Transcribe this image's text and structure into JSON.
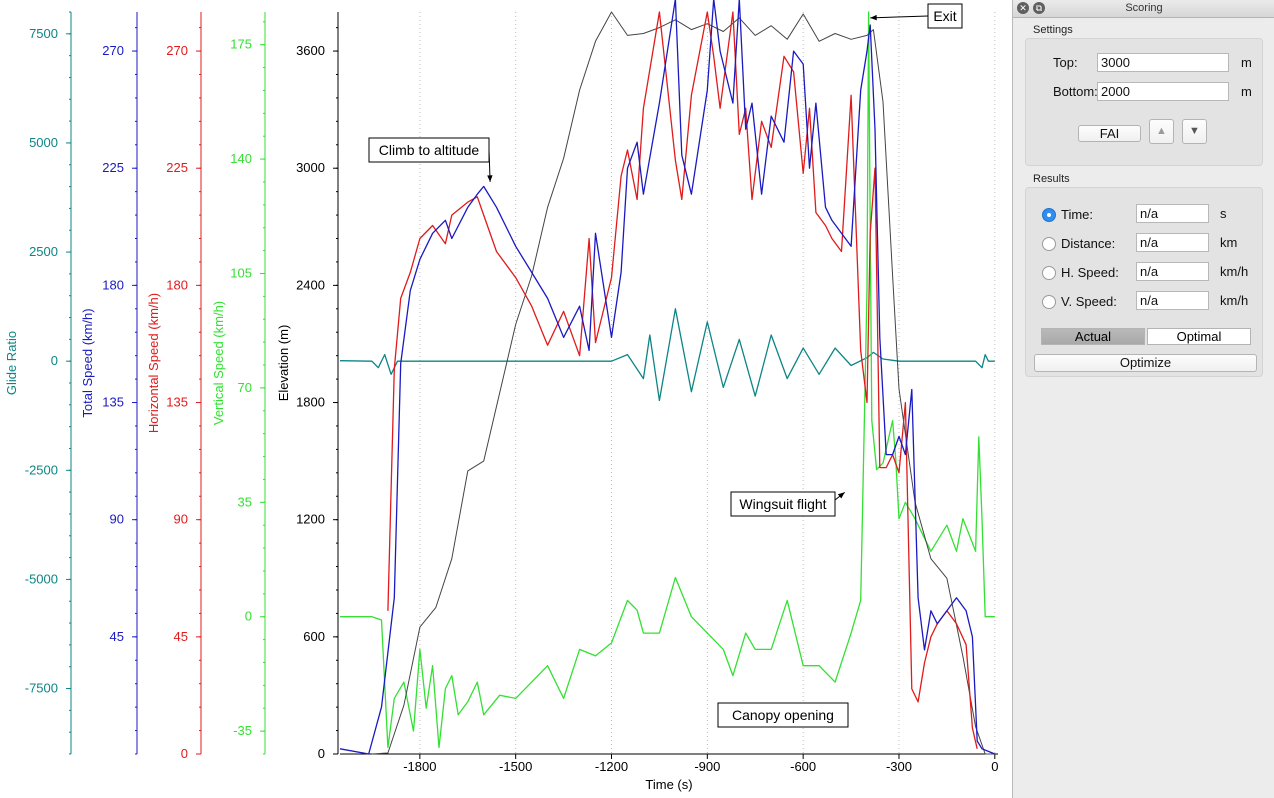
{
  "chart_data": {
    "type": "line",
    "xlabel": "Time (s)",
    "xlim": [
      -2050,
      10
    ],
    "xticks": [
      -1800,
      -1500,
      -1200,
      -900,
      -600,
      -300,
      0
    ],
    "axes": [
      {
        "key": "glide",
        "label": "Glide Ratio",
        "color": "#0d8585",
        "min": -9000,
        "max": 8000,
        "ticks": [
          -7500,
          -5000,
          -2500,
          0,
          2500,
          5000,
          7500
        ]
      },
      {
        "key": "total",
        "label": "Total Speed (km/h)",
        "color": "#1a1ac2",
        "min": 0,
        "max": 285,
        "ticks": [
          45,
          90,
          135,
          180,
          225,
          270
        ]
      },
      {
        "key": "horiz",
        "label": "Horizontal Speed (km/h)",
        "color": "#e01b1b",
        "min": 0,
        "max": 285,
        "ticks": [
          0,
          45,
          90,
          135,
          180,
          225,
          270
        ]
      },
      {
        "key": "vert",
        "label": "Vertical Speed (km/h)",
        "color": "#33e033",
        "min": -42,
        "max": 185,
        "ticks": [
          -35,
          0,
          35,
          70,
          105,
          140,
          175
        ]
      },
      {
        "key": "elev",
        "label": "Elevation (m)",
        "color": "#000000",
        "min": 0,
        "max": 3800,
        "ticks": [
          0,
          600,
          1200,
          1800,
          2400,
          3000,
          3600
        ]
      }
    ],
    "series": [
      {
        "name": "Elevation",
        "axis": "elev",
        "color": "#444444",
        "x": [
          -1950,
          -1900,
          -1850,
          -1800,
          -1750,
          -1700,
          -1650,
          -1600,
          -1550,
          -1500,
          -1450,
          -1400,
          -1350,
          -1300,
          -1250,
          -1200,
          -1150,
          -1100,
          -1050,
          -1000,
          -950,
          -900,
          -850,
          -800,
          -750,
          -700,
          -650,
          -600,
          -550,
          -500,
          -450,
          -400,
          -380,
          -350,
          -320,
          -300,
          -250,
          -200,
          -150,
          -100,
          -60,
          -30,
          0
        ],
        "y": [
          0,
          5,
          250,
          650,
          750,
          1000,
          1450,
          1500,
          1850,
          2200,
          2450,
          2800,
          3050,
          3400,
          3650,
          3800,
          3680,
          3690,
          3720,
          3760,
          3710,
          3740,
          3700,
          3770,
          3680,
          3730,
          3660,
          3790,
          3650,
          3690,
          3660,
          3680,
          3710,
          3340,
          2450,
          1870,
          1290,
          1000,
          900,
          500,
          140,
          0,
          0
        ]
      },
      {
        "name": "Total Speed",
        "axis": "total",
        "color": "#1a1ac2",
        "x": [
          -2050,
          -1960,
          -1920,
          -1880,
          -1860,
          -1830,
          -1800,
          -1760,
          -1720,
          -1700,
          -1650,
          -1620,
          -1600,
          -1560,
          -1500,
          -1450,
          -1400,
          -1350,
          -1300,
          -1270,
          -1250,
          -1200,
          -1170,
          -1150,
          -1120,
          -1100,
          -1050,
          -1000,
          -980,
          -950,
          -900,
          -880,
          -860,
          -820,
          -800,
          -780,
          -760,
          -730,
          -700,
          -660,
          -630,
          -600,
          -580,
          -560,
          -530,
          -510,
          -480,
          -450,
          -420,
          -400,
          -390,
          -375,
          -360,
          -340,
          -320,
          -300,
          -280,
          -260,
          -240,
          -220,
          -200,
          -180,
          -150,
          -120,
          -90,
          -70,
          -55,
          -40,
          -20,
          0
        ],
        "y": [
          2,
          0,
          18,
          60,
          150,
          178,
          190,
          200,
          205,
          198,
          210,
          215,
          218,
          210,
          195,
          185,
          175,
          160,
          172,
          155,
          200,
          160,
          185,
          225,
          235,
          215,
          250,
          290,
          230,
          215,
          255,
          290,
          270,
          250,
          290,
          240,
          250,
          215,
          245,
          235,
          270,
          265,
          225,
          250,
          210,
          205,
          200,
          195,
          255,
          270,
          280,
          240,
          160,
          115,
          115,
          122,
          115,
          140,
          60,
          40,
          55,
          50,
          55,
          60,
          55,
          45,
          5,
          2,
          1,
          0
        ]
      },
      {
        "name": "Horizontal Speed",
        "axis": "horiz",
        "color": "#e01b1b",
        "x": [
          -1900,
          -1880,
          -1860,
          -1830,
          -1800,
          -1760,
          -1720,
          -1700,
          -1650,
          -1620,
          -1600,
          -1560,
          -1500,
          -1450,
          -1400,
          -1350,
          -1300,
          -1270,
          -1250,
          -1200,
          -1170,
          -1150,
          -1120,
          -1100,
          -1050,
          -1000,
          -980,
          -950,
          -900,
          -880,
          -860,
          -820,
          -800,
          -780,
          -760,
          -730,
          -700,
          -660,
          -630,
          -600,
          -580,
          -560,
          -530,
          -510,
          -480,
          -450,
          -420,
          -400,
          -390,
          -375,
          -360,
          -340,
          -320,
          -300,
          -280,
          -260,
          -240,
          -220,
          -200,
          -180,
          -150,
          -120,
          -90,
          -70,
          -55
        ],
        "y": [
          55,
          148,
          175,
          185,
          198,
          203,
          196,
          207,
          212,
          214,
          207,
          193,
          183,
          172,
          157,
          170,
          153,
          198,
          158,
          183,
          222,
          232,
          213,
          248,
          285,
          228,
          213,
          253,
          285,
          268,
          248,
          285,
          238,
          248,
          213,
          243,
          233,
          268,
          262,
          223,
          248,
          208,
          203,
          198,
          193,
          253,
          155,
          135,
          200,
          225,
          110,
          110,
          115,
          108,
          135,
          25,
          20,
          35,
          45,
          50,
          55,
          50,
          42,
          10,
          2
        ]
      },
      {
        "name": "Vertical Speed",
        "axis": "vert",
        "color": "#33e033",
        "x": [
          -2050,
          -1950,
          -1920,
          -1900,
          -1880,
          -1850,
          -1820,
          -1800,
          -1780,
          -1760,
          -1740,
          -1720,
          -1700,
          -1680,
          -1650,
          -1620,
          -1600,
          -1550,
          -1500,
          -1450,
          -1400,
          -1350,
          -1300,
          -1250,
          -1200,
          -1150,
          -1120,
          -1100,
          -1050,
          -1000,
          -950,
          -900,
          -850,
          -820,
          -780,
          -750,
          -700,
          -650,
          -600,
          -550,
          -500,
          -450,
          -420,
          -400,
          -395,
          -390,
          -385,
          -370,
          -350,
          -320,
          -310,
          -300,
          -280,
          -250,
          -200,
          -150,
          -120,
          -100,
          -80,
          -60,
          -50,
          -40,
          -30,
          -20,
          0
        ],
        "y": [
          0,
          0,
          -1,
          -40,
          -25,
          -20,
          -35,
          -10,
          -28,
          -15,
          -40,
          -22,
          -18,
          -30,
          -26,
          -20,
          -30,
          -24,
          -25,
          -20,
          -15,
          -25,
          -10,
          -12,
          -8,
          5,
          2,
          -5,
          -5,
          12,
          0,
          -5,
          -10,
          -18,
          -5,
          -10,
          -10,
          5,
          -15,
          -15,
          -20,
          -5,
          5,
          100,
          185,
          120,
          60,
          45,
          47,
          60,
          48,
          30,
          35,
          30,
          20,
          28,
          20,
          30,
          25,
          20,
          55,
          30,
          0,
          0,
          0
        ]
      },
      {
        "name": "Glide Ratio",
        "axis": "glide",
        "color": "#0d8585",
        "x": [
          -2050,
          -1950,
          -1930,
          -1910,
          -1890,
          -1870,
          -1800,
          -1750,
          -1700,
          -1650,
          -1600,
          -1500,
          -1400,
          -1300,
          -1200,
          -1150,
          -1100,
          -1080,
          -1050,
          -1000,
          -950,
          -900,
          -850,
          -800,
          -750,
          -700,
          -650,
          -600,
          -550,
          -500,
          -450,
          -400,
          -380,
          -350,
          -300,
          -200,
          -100,
          -60,
          -40,
          -30,
          -20,
          0
        ],
        "y": [
          10,
          0,
          -150,
          150,
          -300,
          0,
          0,
          0,
          0,
          0,
          0,
          0,
          0,
          0,
          0,
          150,
          -400,
          600,
          -900,
          1200,
          -700,
          900,
          -600,
          500,
          -800,
          600,
          -400,
          300,
          -300,
          300,
          -100,
          80,
          200,
          50,
          0,
          0,
          0,
          0,
          -150,
          150,
          0,
          0
        ]
      }
    ],
    "annotations": [
      {
        "text": "Exit",
        "x": -390,
        "axis": "elev",
        "y": 3770
      },
      {
        "text": "Climb to altitude",
        "x": -1580,
        "axis": "elev",
        "y": 2930
      },
      {
        "text": "Wingsuit flight",
        "x": -470,
        "axis": "elev",
        "y": 1340
      },
      {
        "text": "Canopy opening",
        "x": -650,
        "axis": "elev",
        "y": 210
      }
    ]
  },
  "panel": {
    "title": "Scoring",
    "settings_label": "Settings",
    "top_label": "Top:",
    "top_value": "3000",
    "bottom_label": "Bottom:",
    "bottom_value": "2000",
    "unit_m": "m",
    "method_button": "FAI",
    "up_glyph": "▲",
    "down_glyph": "▼",
    "results_label": "Results",
    "results": [
      {
        "label": "Time:",
        "value": "n/a",
        "unit": "s"
      },
      {
        "label": "Distance:",
        "value": "n/a",
        "unit": "km"
      },
      {
        "label": "H. Speed:",
        "value": "n/a",
        "unit": "km/h"
      },
      {
        "label": "V. Speed:",
        "value": "n/a",
        "unit": "km/h"
      }
    ],
    "actual_label": "Actual",
    "optimal_label": "Optimal",
    "optimize_label": "Optimize"
  }
}
